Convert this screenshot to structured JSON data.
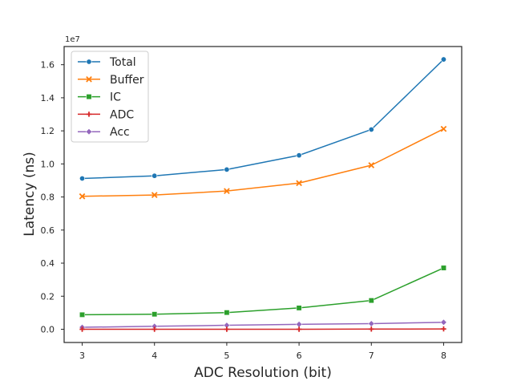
{
  "chart_data": {
    "type": "line",
    "title": "",
    "xlabel": "ADC Resolution (bit)",
    "ylabel": "Latency (ns)",
    "y_scale_label": "1e7",
    "x": [
      3,
      4,
      5,
      6,
      7,
      8
    ],
    "xlim": [
      2.75,
      8.25
    ],
    "ylim": [
      -0.08,
      1.71
    ],
    "y_unit_multiplier": 10000000,
    "xticks": [
      "3",
      "4",
      "5",
      "6",
      "7",
      "8"
    ],
    "yticks": [
      "0.0",
      "0.2",
      "0.4",
      "0.6",
      "0.8",
      "1.0",
      "1.2",
      "1.4",
      "1.6"
    ],
    "legend_position": "top-left",
    "grid": false,
    "series": [
      {
        "name": "Total",
        "color": "#1f77b4",
        "marker": "circle",
        "values": [
          0.912,
          0.928,
          0.966,
          1.052,
          1.208,
          1.632
        ]
      },
      {
        "name": "Buffer",
        "color": "#ff7f0e",
        "marker": "x",
        "values": [
          0.804,
          0.812,
          0.836,
          0.884,
          0.992,
          1.212
        ]
      },
      {
        "name": "IC",
        "color": "#2ca02c",
        "marker": "square",
        "values": [
          0.088,
          0.091,
          0.101,
          0.129,
          0.174,
          0.371
        ]
      },
      {
        "name": "ADC",
        "color": "#d62728",
        "marker": "plus",
        "values": [
          0.0,
          0.0,
          0.0,
          0.0,
          0.001,
          0.002
        ]
      },
      {
        "name": "Acc",
        "color": "#9467bd",
        "marker": "diamond",
        "values": [
          0.012,
          0.018,
          0.024,
          0.03,
          0.034,
          0.042
        ]
      }
    ]
  }
}
